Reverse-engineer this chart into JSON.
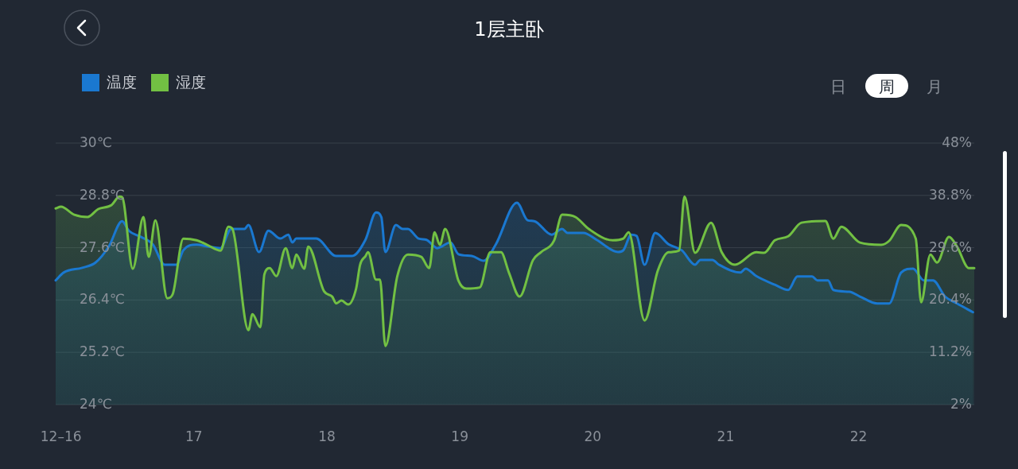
{
  "chart_data": {
    "type": "area",
    "title": "1层主卧",
    "legend": "top left",
    "grid": "y",
    "annotations": [
      "日",
      "周",
      "月"
    ],
    "xlim": [
      15.96,
      22.87
    ],
    "xticks": [
      {
        "value": 16,
        "label": "12–16"
      },
      17,
      18,
      19,
      20,
      21,
      22
    ],
    "ylim": [
      24,
      30
    ],
    "yticks": [
      {
        "value": 24,
        "label": "24℃"
      },
      {
        "value": 25.2,
        "label": "25.2℃"
      },
      {
        "value": 26.4,
        "label": "26.4℃"
      },
      {
        "value": 27.6,
        "label": "27.6℃"
      },
      {
        "value": 28.8,
        "label": "28.8℃"
      },
      {
        "value": 30,
        "label": "30℃"
      }
    ],
    "y2lim": [
      2,
      48
    ],
    "y2ticks": [
      {
        "value": 2,
        "label": "2%"
      },
      {
        "value": 11.2,
        "label": "11.2%"
      },
      {
        "value": 20.4,
        "label": "20.4%"
      },
      {
        "value": 29.6,
        "label": "29.6%"
      },
      {
        "value": 38.8,
        "label": "38.8%"
      },
      {
        "value": 48,
        "label": "48%"
      }
    ],
    "series": [
      {
        "name": "温度",
        "color": "#1a78d0",
        "axis": "y",
        "x": [
          15.96,
          16.02,
          16.16,
          16.26,
          16.36,
          16.46,
          16.51,
          16.6,
          16.69,
          16.78,
          16.87,
          16.92,
          17.02,
          17.1,
          17.2,
          17.28,
          17.38,
          17.41,
          17.49,
          17.56,
          17.65,
          17.71,
          17.74,
          17.77,
          17.92,
          18.07,
          18.19,
          18.29,
          18.37,
          18.41,
          18.44,
          18.52,
          18.57,
          18.61,
          18.69,
          18.75,
          18.83,
          18.93,
          18.99,
          19.09,
          19.18,
          19.27,
          19.43,
          19.51,
          19.56,
          19.69,
          19.77,
          19.81,
          19.93,
          20.03,
          20.19,
          20.23,
          20.29,
          20.33,
          20.39,
          20.47,
          20.57,
          20.67,
          20.77,
          20.81,
          20.9,
          20.95,
          21.11,
          21.15,
          21.23,
          21.37,
          21.47,
          21.54,
          21.65,
          21.69,
          21.77,
          21.81,
          21.93,
          22.01,
          22.14,
          22.23,
          22.32,
          22.41,
          22.49,
          22.56,
          22.65,
          22.74,
          22.86
        ],
        "values": [
          26.85,
          27.03,
          27.14,
          27.26,
          27.63,
          28.21,
          27.99,
          27.85,
          27.68,
          27.21,
          27.21,
          27.54,
          27.67,
          27.63,
          27.59,
          28.03,
          28.03,
          28.12,
          27.5,
          27.99,
          27.81,
          27.9,
          27.72,
          27.81,
          27.81,
          27.41,
          27.41,
          27.78,
          28.41,
          28.3,
          27.5,
          28.12,
          28.03,
          28.03,
          27.81,
          27.78,
          27.59,
          27.72,
          27.45,
          27.41,
          27.3,
          27.67,
          28.63,
          28.23,
          28.21,
          27.9,
          28.03,
          27.94,
          27.94,
          27.78,
          27.5,
          27.54,
          27.9,
          27.87,
          27.21,
          27.94,
          27.68,
          27.54,
          27.21,
          27.32,
          27.32,
          27.21,
          27.03,
          27.12,
          26.95,
          26.75,
          26.63,
          26.94,
          26.94,
          26.85,
          26.85,
          26.63,
          26.59,
          26.48,
          26.32,
          26.32,
          27.03,
          27.12,
          26.85,
          26.85,
          26.48,
          26.32,
          26.12
        ]
      },
      {
        "name": "湿度",
        "color": "#72c043",
        "axis": "y2",
        "x": [
          15.96,
          16.0,
          16.1,
          16.2,
          16.28,
          16.38,
          16.44,
          16.46,
          16.54,
          16.62,
          16.66,
          16.71,
          16.8,
          16.84,
          16.92,
          17.02,
          17.1,
          17.2,
          17.26,
          17.29,
          17.41,
          17.44,
          17.5,
          17.53,
          17.57,
          17.62,
          17.69,
          17.74,
          17.77,
          17.83,
          17.86,
          17.98,
          18.04,
          18.07,
          18.11,
          18.16,
          18.22,
          18.25,
          18.29,
          18.31,
          18.37,
          18.4,
          18.44,
          18.53,
          18.61,
          18.71,
          18.77,
          18.81,
          18.85,
          18.89,
          18.99,
          19.05,
          19.15,
          19.23,
          19.31,
          19.37,
          19.45,
          19.55,
          19.61,
          19.71,
          19.77,
          19.87,
          19.97,
          20.15,
          20.23,
          20.27,
          20.39,
          20.49,
          20.57,
          20.65,
          20.69,
          20.77,
          20.89,
          20.97,
          21.07,
          21.23,
          21.29,
          21.37,
          21.47,
          21.57,
          21.75,
          21.81,
          21.87,
          22.01,
          22.17,
          22.23,
          22.32,
          22.43,
          22.47,
          22.54,
          22.59,
          22.68,
          22.74,
          22.83,
          22.87
        ],
        "values": [
          36.5,
          36.8,
          35.4,
          35.0,
          36.4,
          37.1,
          38.6,
          38.5,
          25.9,
          35.0,
          28.0,
          34.4,
          20.7,
          21.4,
          31.2,
          30.9,
          30.1,
          29.1,
          33.3,
          32.9,
          15.1,
          17.9,
          15.6,
          24.9,
          26.0,
          24.6,
          29.5,
          26.0,
          28.4,
          25.9,
          29.8,
          21.9,
          21.0,
          19.8,
          20.3,
          19.6,
          22.4,
          26.6,
          28.1,
          28.8,
          24.0,
          24.0,
          12.3,
          24.6,
          28.4,
          28.0,
          26.0,
          32.3,
          30.1,
          32.9,
          23.8,
          22.4,
          22.6,
          28.8,
          28.8,
          25.2,
          21.0,
          27.4,
          28.8,
          30.9,
          35.4,
          35.0,
          32.9,
          30.9,
          31.2,
          32.3,
          16.8,
          25.6,
          28.8,
          29.1,
          38.6,
          28.7,
          34.0,
          28.8,
          26.6,
          28.8,
          28.7,
          30.9,
          31.6,
          34.0,
          34.3,
          31.2,
          33.3,
          30.5,
          30.1,
          30.8,
          33.6,
          31.2,
          20.0,
          28.4,
          27.0,
          31.5,
          29.8,
          26.0,
          26.0
        ]
      }
    ]
  }
}
